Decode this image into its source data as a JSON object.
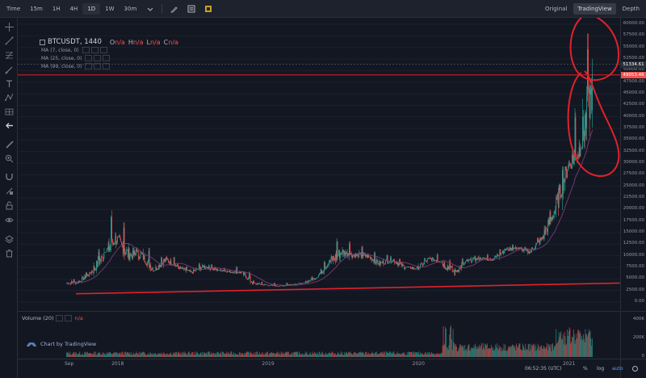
{
  "toolbar": {
    "timeframes": [
      {
        "label": "Time",
        "active": false
      },
      {
        "label": "15m",
        "active": false
      },
      {
        "label": "1H",
        "active": false
      },
      {
        "label": "4H",
        "active": false
      },
      {
        "label": "1D",
        "active": true
      },
      {
        "label": "1W",
        "active": false
      },
      {
        "label": "30m",
        "active": false
      }
    ],
    "icons": [
      "dropdown-caret-icon",
      "pencil-icon",
      "indicators-icon",
      "settings-icon"
    ],
    "view_tabs": [
      {
        "label": "Original",
        "active": false
      },
      {
        "label": "TradingView",
        "active": true
      },
      {
        "label": "Depth",
        "active": false
      }
    ]
  },
  "legend": {
    "symbol": "BTCUSDT, 1440",
    "ohlc": [
      {
        "key": "O",
        "value": "n/a"
      },
      {
        "key": "H",
        "value": "n/a"
      },
      {
        "key": "L",
        "value": "n/a"
      },
      {
        "key": "C",
        "value": "n/a"
      }
    ],
    "mas": [
      "MA (7, close, 0)",
      "MA (25, close, 0)",
      "MA (99, close, 0)"
    ]
  },
  "price_axis": {
    "ticks": [
      "60000.00",
      "57500.00",
      "55000.00",
      "52500.00",
      "50000.00",
      "47500.00",
      "45000.00",
      "42500.00",
      "40000.00",
      "37500.00",
      "35000.00",
      "32500.00",
      "30000.00",
      "27500.00",
      "25000.00",
      "22500.00",
      "20000.00",
      "17500.00",
      "15000.00",
      "12500.00",
      "10000.00",
      "7500.00",
      "5000.00",
      "2500.00",
      "0.00"
    ],
    "current_price": "51334.61",
    "current_color": "#2a2e39",
    "marker_price": "49053.48",
    "marker_color": "#ef5350"
  },
  "volume": {
    "label": "Volume (20)",
    "value": "n/a",
    "ticks": [
      "400K",
      "200K",
      "0"
    ]
  },
  "time_axis": {
    "labels": [
      "Sep",
      "2018",
      "2019",
      "2020",
      "2021"
    ]
  },
  "watermark": "Chart by TradingView",
  "bottom_bar": {
    "clock": "06:52:35 (UTC)",
    "percent": "%",
    "log": "log",
    "auto": "auto"
  },
  "sidebar_icons": [
    "crosshair-icon",
    "trend-line-icon",
    "fib-retracement-icon",
    "brush-icon",
    "text-icon",
    "pattern-icon",
    "forecast-icon",
    "back-arrow-icon",
    "ruler-icon",
    "zoom-in-icon",
    "magnet-icon",
    "lock-drawing-icon",
    "unlock-icon",
    "eye-icon",
    "layers-icon",
    "trash-icon"
  ],
  "colors": {
    "background": "#131722",
    "candle_up": "#26a69a",
    "candle_down": "#ef5350",
    "ma_line": "#7b3b74",
    "annotation": "#e0222a"
  },
  "chart_data": {
    "type": "candlestick",
    "symbol": "BTCUSDT",
    "interval": "1D",
    "ylim": [
      0,
      60000
    ],
    "x": [
      "2017-09",
      "2017-10",
      "2017-11",
      "2017-12",
      "2018-01",
      "2018-02",
      "2018-03",
      "2018-04",
      "2018-05",
      "2018-06",
      "2018-07",
      "2018-08",
      "2018-09",
      "2018-10",
      "2018-11",
      "2018-12",
      "2019-01",
      "2019-02",
      "2019-03",
      "2019-04",
      "2019-05",
      "2019-06",
      "2019-07",
      "2019-08",
      "2019-09",
      "2019-10",
      "2019-11",
      "2019-12",
      "2020-01",
      "2020-02",
      "2020-03",
      "2020-04",
      "2020-05",
      "2020-06",
      "2020-07",
      "2020-08",
      "2020-09",
      "2020-10",
      "2020-11",
      "2020-12",
      "2021-01",
      "2021-02"
    ],
    "close": [
      4300,
      6400,
      9900,
      13800,
      10200,
      10300,
      6900,
      9200,
      7500,
      6400,
      7700,
      7000,
      6600,
      6400,
      4000,
      3700,
      3450,
      3800,
      4100,
      5300,
      8600,
      10800,
      10100,
      10000,
      8300,
      9200,
      7600,
      7200,
      9350,
      8600,
      6400,
      8800,
      9450,
      9150,
      11300,
      11700,
      10800,
      13800,
      19700,
      29000,
      33100,
      46000
    ],
    "high": [
      5000,
      6500,
      11500,
      19800,
      17200,
      11800,
      11700,
      9800,
      10000,
      7800,
      8500,
      8200,
      7400,
      7800,
      6600,
      4400,
      4200,
      4200,
      4200,
      5600,
      9000,
      13800,
      13100,
      12300,
      10900,
      10400,
      9400,
      7700,
      9600,
      10500,
      9200,
      9500,
      10100,
      10400,
      11500,
      12500,
      12000,
      14000,
      19900,
      29300,
      42000,
      58000
    ],
    "low": [
      3000,
      4100,
      5600,
      10800,
      9100,
      6000,
      6600,
      6400,
      7000,
      5800,
      6100,
      5900,
      6200,
      6100,
      3700,
      3200,
      3400,
      3300,
      3700,
      4100,
      5300,
      7400,
      9000,
      9300,
      7800,
      7400,
      6500,
      6400,
      6900,
      8600,
      3800,
      6200,
      8100,
      8900,
      9000,
      11000,
      10000,
      10400,
      13200,
      18000,
      28800,
      33000
    ],
    "ma_series": [
      {
        "name": "MA (7, close, 0)"
      },
      {
        "name": "MA (25, close, 0)"
      },
      {
        "name": "MA (99, close, 0)"
      }
    ],
    "volume_ylim": [
      0,
      400000
    ],
    "annotations": [
      "circle-around-jan-2021-range",
      "circle-around-feb-2021-peak",
      "support-trend-line",
      "horizontal-price-level"
    ]
  }
}
